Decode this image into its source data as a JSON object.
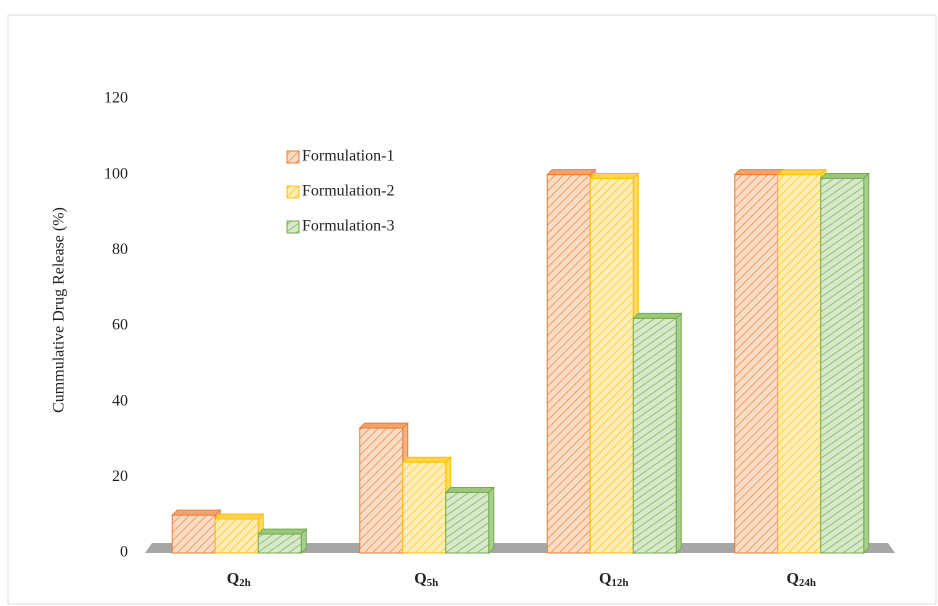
{
  "chart_data": {
    "type": "bar",
    "ylabel": "Cummulative  Drug  Release  (%)",
    "categories": [
      "Q2h",
      "Q5h",
      "Q12h",
      "Q24h"
    ],
    "series": [
      {
        "name": "Formulation-1",
        "color": "#ed7d31",
        "values": [
          10,
          33,
          100,
          100
        ]
      },
      {
        "name": "Formulation-2",
        "color": "#ffc000",
        "values": [
          9,
          24,
          99,
          100
        ]
      },
      {
        "name": "Formulation-3",
        "color": "#70ad47",
        "values": [
          5,
          16,
          62,
          99
        ]
      }
    ],
    "ylim": [
      0,
      120
    ],
    "yticks": [
      0,
      20,
      40,
      60,
      80,
      100,
      120
    ],
    "grid": false,
    "legend": "upper left"
  }
}
